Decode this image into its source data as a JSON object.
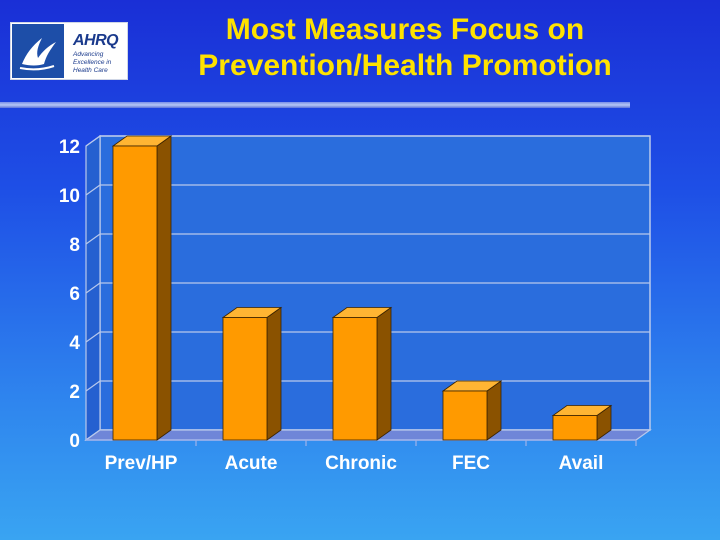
{
  "logo": {
    "brand": "AHRQ",
    "tagline": "Advancing Excellence in Health Care"
  },
  "title_lines": [
    "Most Measures Focus on",
    "Prevention/Health Promotion"
  ],
  "colors": {
    "title": "#ffe200",
    "bar_front": "#ff9a00",
    "bar_top": "#ffb533",
    "bar_side": "#8a5200",
    "plot_wall": "#2a6ddd",
    "grid": "#b9c9ec"
  },
  "chart_data": {
    "type": "bar",
    "categories": [
      "Prev/HP",
      "Acute",
      "Chronic",
      "FEC",
      "Avail"
    ],
    "values": [
      12,
      5,
      5,
      2,
      1
    ],
    "title": "Most Measures Focus on Prevention/Health Promotion",
    "xlabel": "",
    "ylabel": "",
    "ylim": [
      0,
      12
    ],
    "yticks": [
      "0",
      "2",
      "4",
      "6",
      "8",
      "10",
      "12"
    ],
    "grid": true,
    "legend": "none"
  }
}
